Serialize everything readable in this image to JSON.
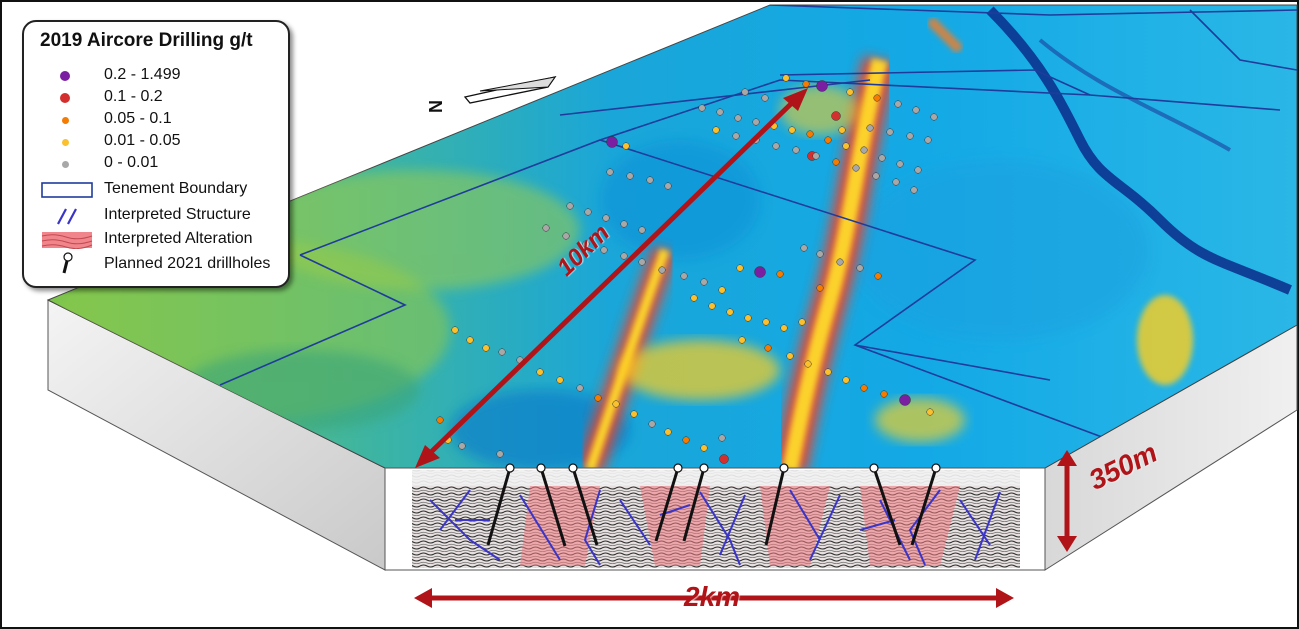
{
  "legend": {
    "title": "2019 Aircore Drilling g/t",
    "grades": [
      {
        "label": "0.2 - 1.499",
        "color": "#7b1fa2"
      },
      {
        "label": "0.1 - 0.2",
        "color": "#d32f2f"
      },
      {
        "label": "0.05 - 0.1",
        "color": "#f57c00"
      },
      {
        "label": "0.01 - 0.05",
        "color": "#fbc02d"
      },
      {
        "label": "0 - 0.01",
        "color": "#a8a8a8"
      }
    ],
    "tenement_label": "Tenement Boundary",
    "structure_label": "Interpreted Structure",
    "alteration_label": "Interpreted Alteration",
    "drillholes_label": "Planned 2021 drillholes"
  },
  "annotations": {
    "length_label": "10km",
    "depth_label": "350m",
    "width_label": "2km"
  },
  "colors": {
    "annotation_red": "#b01418",
    "tenement_blue": "#1f3c9c",
    "structure_blue": "#3a35c8"
  },
  "icons": [
    "north-arrow-icon"
  ],
  "north_label": "N"
}
